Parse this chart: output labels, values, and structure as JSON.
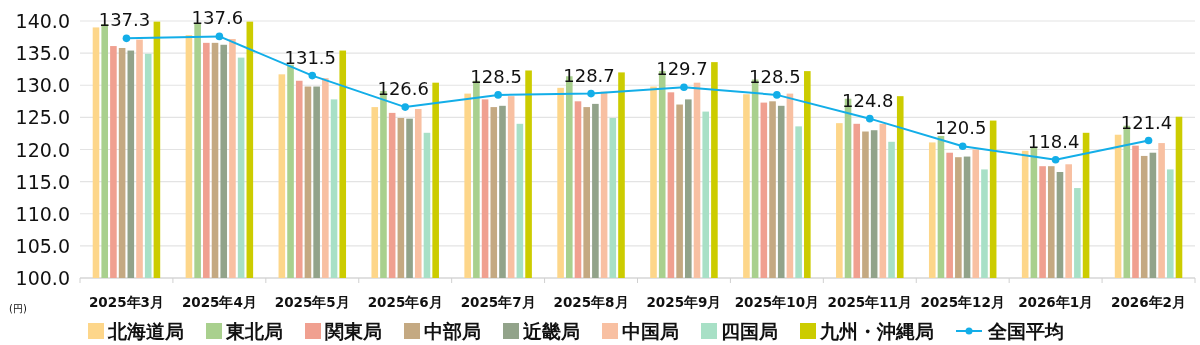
{
  "chart_data": {
    "type": "bar",
    "ylabel": "(円)",
    "categories": [
      "2025年3月",
      "2025年4月",
      "2025年5月",
      "2025年6月",
      "2025年7月",
      "2025年8月",
      "2025年9月",
      "2025年10月",
      "2025年11月",
      "2025年12月",
      "2026年1月",
      "2026年2月"
    ],
    "ylim": [
      100,
      140
    ],
    "yticks": [
      {
        "value": 100,
        "label": "100.0"
      },
      {
        "value": 105,
        "label": "105.0"
      },
      {
        "value": 110,
        "label": "110.0"
      },
      {
        "value": 115,
        "label": "115.0"
      },
      {
        "value": 120,
        "label": "120.0"
      },
      {
        "value": 125,
        "label": "125.0"
      },
      {
        "value": 130,
        "label": "130.0"
      },
      {
        "value": 135,
        "label": "135.0"
      },
      {
        "value": 140,
        "label": "140.0"
      }
    ],
    "grid": "y",
    "legend": "bottom",
    "marker": "circle",
    "series": [
      {
        "name": "北海道局",
        "color": "#fdd68a",
        "values": [
          139.0,
          137.8,
          131.7,
          126.6,
          128.7,
          129.6,
          129.8,
          128.6,
          124.1,
          121.1,
          119.8,
          122.3
        ]
      },
      {
        "name": "東北局",
        "color": "#a9d08e",
        "values": [
          139.5,
          139.7,
          133.2,
          129.1,
          130.7,
          131.4,
          132.2,
          130.9,
          127.9,
          122.1,
          120.3,
          123.7
        ]
      },
      {
        "name": "関東局",
        "color": "#f0a090",
        "values": [
          136.1,
          136.6,
          130.7,
          125.7,
          127.8,
          127.5,
          128.9,
          127.3,
          124.0,
          119.5,
          117.4,
          120.6
        ]
      },
      {
        "name": "中部局",
        "color": "#c4a982",
        "values": [
          135.8,
          136.6,
          129.8,
          124.9,
          126.6,
          126.6,
          127.0,
          127.5,
          122.8,
          118.8,
          117.4,
          119.0
        ]
      },
      {
        "name": "近畿局",
        "color": "#92a38a",
        "values": [
          135.4,
          136.3,
          129.8,
          124.8,
          126.8,
          127.1,
          127.8,
          126.8,
          123.0,
          118.9,
          116.5,
          119.5
        ]
      },
      {
        "name": "中国局",
        "color": "#f8c0a2",
        "values": [
          137.1,
          137.2,
          131.1,
          126.3,
          128.3,
          129.0,
          130.4,
          128.7,
          124.0,
          120.0,
          117.7,
          121.0
        ]
      },
      {
        "name": "四国局",
        "color": "#a8e0c6",
        "values": [
          134.9,
          134.3,
          127.8,
          122.6,
          124.0,
          124.9,
          125.9,
          123.6,
          121.2,
          116.9,
          114.0,
          116.9
        ]
      },
      {
        "name": "九州・沖縄局",
        "color": "#cccc00",
        "values": [
          139.9,
          139.9,
          135.4,
          130.4,
          132.3,
          132.0,
          133.6,
          132.2,
          128.3,
          124.5,
          122.6,
          125.1
        ]
      },
      {
        "name": "全国平均",
        "type": "line",
        "color": "#13aee8",
        "values": [
          137.3,
          137.6,
          131.5,
          126.6,
          128.5,
          128.7,
          129.7,
          128.5,
          124.8,
          120.5,
          118.4,
          121.4
        ],
        "value_labels": [
          "137.3",
          "137.6",
          "131.5",
          "126.6",
          "128.5",
          "128.7",
          "129.7",
          "128.5",
          "124.8",
          "120.5",
          "118.4",
          "121.4"
        ]
      }
    ]
  }
}
